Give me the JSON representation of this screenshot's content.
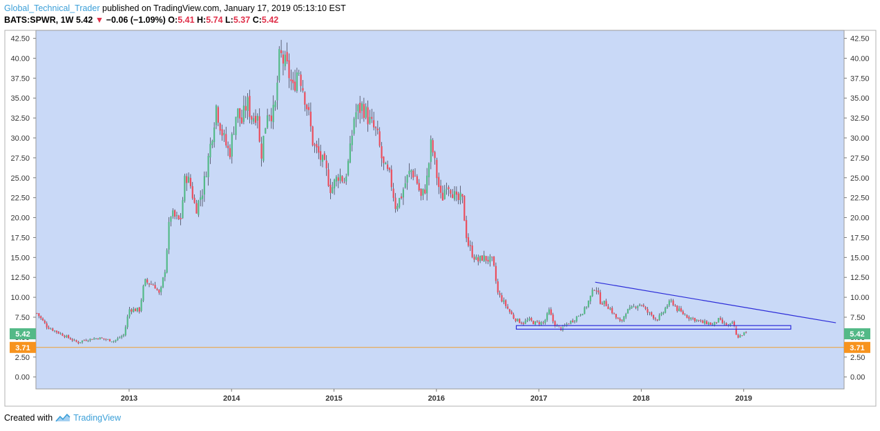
{
  "header": {
    "author": "Global_Technical_Trader",
    "published_text": " published on TradingView.com, January 17, 2019 05:13:10 EST",
    "symbol": "BATS:SPWR, 1W",
    "last": "5.42",
    "change": "−0.06 (−1.09%)",
    "o_label": "O:",
    "o_value": "5.41",
    "h_label": "H:",
    "h_value": "5.74",
    "l_label": "L:",
    "l_value": "5.37",
    "c_label": "C:",
    "c_value": "5.42"
  },
  "footer": {
    "created_with": "Created with",
    "brand": "TradingView"
  },
  "colors": {
    "plot_bg": "#c9d9f7",
    "up": "#53b987",
    "down": "#eb4d5c",
    "support": "#f0a030",
    "trendline": "#2a2ad8",
    "price_badge": "#53b987",
    "support_badge": "#f7931e"
  },
  "chart_data": {
    "type": "candlestick",
    "symbol": "BATS:SPWR",
    "interval": "1W",
    "y_ticks": [
      "0.00",
      "2.50",
      "5.00",
      "7.50",
      "10.00",
      "12.50",
      "15.00",
      "17.50",
      "20.00",
      "22.50",
      "25.00",
      "27.50",
      "30.00",
      "32.50",
      "35.00",
      "37.50",
      "40.00",
      "42.50"
    ],
    "ylim": [
      -1.5,
      43.5
    ],
    "x_ticks": [
      "2013",
      "2014",
      "2015",
      "2016",
      "2017",
      "2018",
      "2019"
    ],
    "xlim": [
      2012.09,
      2019.98
    ],
    "last_price_label": "5.42",
    "support_label": "3.71",
    "support_level": 3.71,
    "close_anchors": [
      [
        2012.1,
        8.0
      ],
      [
        2012.2,
        6.3
      ],
      [
        2012.35,
        5.3
      ],
      [
        2012.5,
        4.3
      ],
      [
        2012.55,
        4.6
      ],
      [
        2012.7,
        4.9
      ],
      [
        2012.85,
        4.5
      ],
      [
        2012.95,
        5.3
      ],
      [
        2013.0,
        8.5
      ],
      [
        2013.1,
        8.4
      ],
      [
        2013.15,
        12.0
      ],
      [
        2013.25,
        11.5
      ],
      [
        2013.3,
        10.2
      ],
      [
        2013.35,
        13.5
      ],
      [
        2013.4,
        20.5
      ],
      [
        2013.5,
        19.5
      ],
      [
        2013.55,
        25.5
      ],
      [
        2013.6,
        24.0
      ],
      [
        2013.65,
        21.0
      ],
      [
        2013.72,
        23.5
      ],
      [
        2013.78,
        28.0
      ],
      [
        2013.85,
        34.0
      ],
      [
        2013.92,
        30.0
      ],
      [
        2013.98,
        28.0
      ],
      [
        2014.05,
        33.5
      ],
      [
        2014.1,
        32.0
      ],
      [
        2014.15,
        34.5
      ],
      [
        2014.2,
        32.5
      ],
      [
        2014.26,
        33.5
      ],
      [
        2014.28,
        27.0
      ],
      [
        2014.35,
        33.5
      ],
      [
        2014.42,
        33.0
      ],
      [
        2014.47,
        40.5
      ],
      [
        2014.55,
        38.5
      ],
      [
        2014.6,
        36.0
      ],
      [
        2014.65,
        39.0
      ],
      [
        2014.72,
        35.0
      ],
      [
        2014.75,
        33.0
      ],
      [
        2014.8,
        29.0
      ],
      [
        2014.85,
        28.0
      ],
      [
        2014.92,
        26.0
      ],
      [
        2014.97,
        23.5
      ],
      [
        2015.05,
        25.5
      ],
      [
        2015.1,
        24.5
      ],
      [
        2015.15,
        27.5
      ],
      [
        2015.2,
        33.0
      ],
      [
        2015.28,
        34.0
      ],
      [
        2015.35,
        32.0
      ],
      [
        2015.42,
        30.5
      ],
      [
        2015.48,
        26.5
      ],
      [
        2015.55,
        25.0
      ],
      [
        2015.6,
        21.5
      ],
      [
        2015.65,
        22.5
      ],
      [
        2015.7,
        24.5
      ],
      [
        2015.75,
        26.0
      ],
      [
        2015.8,
        25.0
      ],
      [
        2015.85,
        22.5
      ],
      [
        2015.9,
        24.0
      ],
      [
        2015.95,
        29.5
      ],
      [
        2016.0,
        25.5
      ],
      [
        2016.05,
        22.0
      ],
      [
        2016.1,
        24.5
      ],
      [
        2016.15,
        23.5
      ],
      [
        2016.2,
        22.0
      ],
      [
        2016.25,
        22.5
      ],
      [
        2016.3,
        17.0
      ],
      [
        2016.35,
        15.5
      ],
      [
        2016.4,
        14.5
      ],
      [
        2016.45,
        15.0
      ],
      [
        2016.55,
        14.5
      ],
      [
        2016.6,
        10.5
      ],
      [
        2016.65,
        9.5
      ],
      [
        2016.7,
        8.5
      ],
      [
        2016.75,
        7.5
      ],
      [
        2016.8,
        7.0
      ],
      [
        2016.85,
        6.8
      ],
      [
        2016.9,
        7.2
      ],
      [
        2016.95,
        6.8
      ],
      [
        2017.05,
        6.8
      ],
      [
        2017.1,
        8.3
      ],
      [
        2017.15,
        6.6
      ],
      [
        2017.22,
        6.0
      ],
      [
        2017.27,
        6.6
      ],
      [
        2017.35,
        7.3
      ],
      [
        2017.45,
        8.5
      ],
      [
        2017.52,
        10.5
      ],
      [
        2017.55,
        11.5
      ],
      [
        2017.6,
        9.5
      ],
      [
        2017.65,
        9.2
      ],
      [
        2017.7,
        8.5
      ],
      [
        2017.75,
        7.5
      ],
      [
        2017.8,
        6.8
      ],
      [
        2017.85,
        8.2
      ],
      [
        2017.9,
        8.5
      ],
      [
        2017.95,
        9.0
      ],
      [
        2018.0,
        9.2
      ],
      [
        2018.05,
        8.2
      ],
      [
        2018.1,
        7.8
      ],
      [
        2018.15,
        7.2
      ],
      [
        2018.2,
        7.8
      ],
      [
        2018.25,
        9.0
      ],
      [
        2018.3,
        9.5
      ],
      [
        2018.35,
        8.5
      ],
      [
        2018.4,
        8.0
      ],
      [
        2018.45,
        7.6
      ],
      [
        2018.55,
        7.1
      ],
      [
        2018.6,
        6.8
      ],
      [
        2018.65,
        6.8
      ],
      [
        2018.7,
        6.5
      ],
      [
        2018.75,
        7.2
      ],
      [
        2018.8,
        6.7
      ],
      [
        2018.85,
        6.4
      ],
      [
        2018.9,
        6.8
      ],
      [
        2018.93,
        5.0
      ],
      [
        2018.96,
        5.1
      ],
      [
        2019.0,
        5.5
      ],
      [
        2019.04,
        5.42
      ]
    ],
    "annotations": [
      {
        "type": "trendline",
        "from": [
          2017.55,
          11.9
        ],
        "to": [
          2019.9,
          6.8
        ]
      },
      {
        "type": "rectangle",
        "x": [
          2016.78,
          2019.46
        ],
        "y": [
          6.0,
          6.45
        ]
      },
      {
        "type": "hline",
        "y": 3.71
      }
    ]
  }
}
